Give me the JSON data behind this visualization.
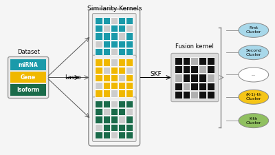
{
  "title": "Similarity Kernels",
  "fusion_label": "Fusion kernel",
  "dataset_label": "Dataset",
  "lasso_label": "Lasso",
  "skf_label": "SKF",
  "layers": [
    "miRNA",
    "Gene",
    "Isoform"
  ],
  "layer_colors": [
    "#1a9aaa",
    "#f0b800",
    "#1a6b4a"
  ],
  "kernel_colors": [
    "#1a9aaa",
    "#f0b800",
    "#1a6b4a"
  ],
  "cluster_labels": [
    "First\nCluster",
    "Second\nCluster",
    "...",
    "(K-1)-th\nCluster",
    "K-th\nCluster"
  ],
  "cluster_colors": [
    "#a8d8ea",
    "#a8d8ea",
    "#ffffff",
    "#f5c518",
    "#90c060"
  ],
  "bg_color": "#f5f5f5",
  "kernel_pattern": [
    [
      1,
      1,
      0,
      1,
      1
    ],
    [
      1,
      0,
      1,
      1,
      0
    ],
    [
      1,
      1,
      1,
      0,
      1
    ],
    [
      0,
      1,
      1,
      1,
      1
    ],
    [
      1,
      1,
      0,
      1,
      1
    ]
  ],
  "fusion_pattern": [
    [
      1,
      1,
      0,
      1,
      1
    ],
    [
      1,
      1,
      1,
      0,
      1
    ],
    [
      0,
      1,
      1,
      1,
      0
    ],
    [
      1,
      0,
      1,
      1,
      1
    ],
    [
      1,
      1,
      0,
      1,
      1
    ]
  ]
}
